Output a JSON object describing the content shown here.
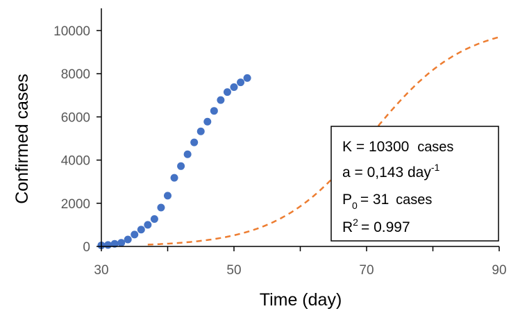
{
  "chart_data": {
    "type": "scatter",
    "xlabel": "Time (day)",
    "ylabel": "Confirmed cases",
    "xlim": [
      30,
      90
    ],
    "ylim": [
      0,
      10000
    ],
    "x_ticks": [
      "30",
      "50",
      "70",
      "90"
    ],
    "y_ticks": [
      "0",
      "2000",
      "4000",
      "6000",
      "8000",
      "10000"
    ],
    "series": [
      {
        "type": "scatter",
        "color": "#4472C4",
        "x": [
          30,
          31,
          32,
          33,
          34,
          35,
          36,
          37,
          38,
          39,
          40,
          41,
          42,
          43,
          44,
          45,
          46,
          47,
          48,
          49,
          50,
          51,
          52
        ],
        "y": [
          50,
          70,
          120,
          170,
          320,
          550,
          780,
          1000,
          1270,
          1800,
          2350,
          3180,
          3720,
          4270,
          4820,
          5330,
          5780,
          6280,
          6780,
          7150,
          7380,
          7600,
          7800
        ]
      },
      {
        "type": "line",
        "style": "dashed",
        "color": "#ED7D31",
        "model": "logistic",
        "K": 10300,
        "a": 0.143,
        "P0": 31,
        "x_start": 30,
        "x_end": 90
      }
    ],
    "annotation": {
      "line1_main": "K = 10300",
      "line1_unit": "cases",
      "line2_main": "a = 0,143 day",
      "line2_sup": "-1",
      "line3_main": "P",
      "line3_sub": "0",
      "line3_rest": "= 31",
      "line3_unit": "cases",
      "line4_main": "R",
      "line4_sup": "2",
      "line4_rest": "= 0.997"
    }
  }
}
